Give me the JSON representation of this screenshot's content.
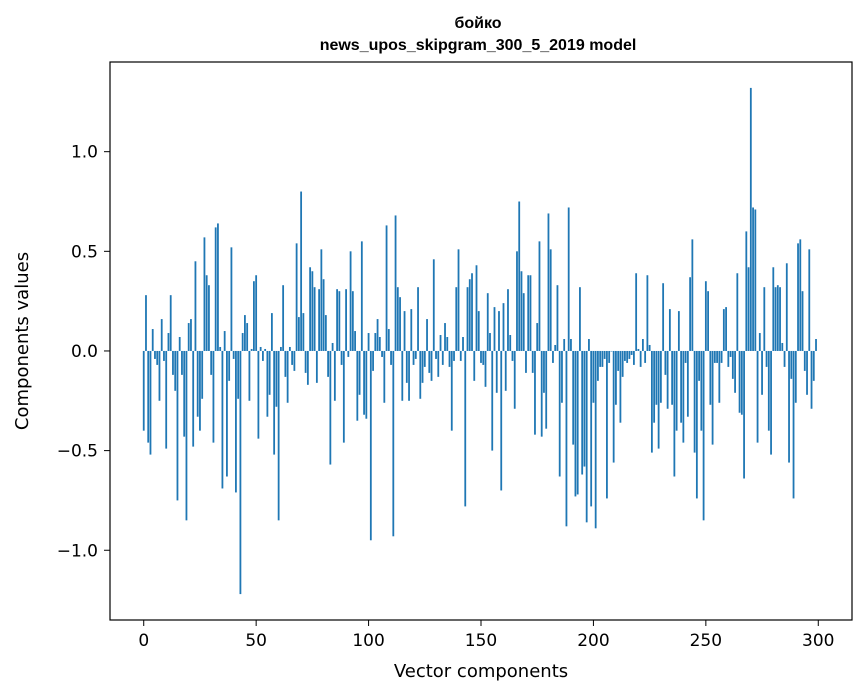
{
  "chart_data": {
    "type": "bar",
    "title_line1": "бойко",
    "title_line2": "news_upos_skipgram_300_5_2019 model",
    "xlabel": "Vector components",
    "ylabel": "Components values",
    "xlim": [
      -15,
      315
    ],
    "ylim": [
      -1.35,
      1.45
    ],
    "xticks": [
      0,
      50,
      100,
      150,
      200,
      250,
      300
    ],
    "xtick_labels": [
      "0",
      "50",
      "100",
      "150",
      "200",
      "250",
      "300"
    ],
    "yticks": [
      -1.0,
      -0.5,
      0.0,
      0.5,
      1.0
    ],
    "ytick_labels": [
      "−1.0",
      "−0.5",
      "0.0",
      "0.5",
      "1.0"
    ],
    "grid": false,
    "bar_color": "#1f77b4",
    "x_start": 0,
    "values": [
      -0.4,
      0.28,
      -0.46,
      -0.52,
      0.11,
      -0.04,
      -0.07,
      -0.25,
      0.16,
      -0.05,
      -0.49,
      0.09,
      0.28,
      -0.12,
      -0.2,
      -0.75,
      0.07,
      -0.12,
      -0.43,
      -0.85,
      0.14,
      0.16,
      -0.48,
      0.45,
      -0.33,
      -0.4,
      -0.24,
      0.57,
      0.38,
      0.33,
      -0.12,
      -0.46,
      0.62,
      0.64,
      0.02,
      -0.69,
      0.1,
      -0.63,
      -0.15,
      0.52,
      -0.04,
      -0.71,
      -0.24,
      -1.22,
      0.09,
      0.18,
      0.14,
      -0.25,
      0.01,
      0.35,
      0.38,
      -0.44,
      0.02,
      -0.05,
      0.01,
      -0.33,
      -0.22,
      0.19,
      -0.52,
      -0.28,
      -0.85,
      0.02,
      0.33,
      -0.13,
      -0.26,
      0.02,
      -0.07,
      -0.1,
      0.54,
      0.17,
      0.8,
      0.19,
      -0.11,
      -0.17,
      0.42,
      0.4,
      0.32,
      -0.16,
      0.31,
      0.51,
      0.36,
      0.18,
      -0.13,
      -0.57,
      0.04,
      -0.25,
      0.31,
      0.3,
      -0.07,
      -0.46,
      0.31,
      -0.03,
      0.5,
      0.3,
      0.1,
      -0.35,
      -0.22,
      0.55,
      -0.32,
      -0.34,
      0.09,
      -0.95,
      -0.1,
      0.09,
      0.16,
      0.07,
      -0.03,
      -0.26,
      0.63,
      0.11,
      -0.07,
      -0.93,
      0.68,
      0.32,
      0.27,
      -0.25,
      0.2,
      -0.16,
      -0.25,
      0.21,
      -0.07,
      -0.04,
      0.32,
      -0.24,
      -0.16,
      -0.08,
      0.16,
      -0.11,
      -0.15,
      0.46,
      -0.04,
      -0.13,
      0.08,
      -0.07,
      0.14,
      0.07,
      -0.08,
      -0.4,
      -0.05,
      0.32,
      0.51,
      -0.05,
      0.07,
      -0.78,
      0.32,
      0.36,
      0.39,
      -0.15,
      0.43,
      0.2,
      -0.06,
      -0.07,
      -0.18,
      0.29,
      0.09,
      -0.5,
      0.22,
      -0.21,
      0.2,
      -0.7,
      0.24,
      -0.2,
      0.31,
      0.08,
      -0.05,
      -0.29,
      0.5,
      0.75,
      0.4,
      0.29,
      -0.11,
      0.38,
      0.38,
      -0.11,
      -0.42,
      0.14,
      0.55,
      -0.43,
      -0.21,
      -0.39,
      0.69,
      0.51,
      -0.06,
      0.03,
      0.33,
      -0.63,
      -0.26,
      0.06,
      -0.88,
      0.72,
      0.06,
      -0.47,
      -0.73,
      -0.72,
      0.32,
      -0.62,
      -0.58,
      -0.86,
      0.06,
      -0.78,
      -0.26,
      -0.89,
      -0.15,
      -0.08,
      -0.08,
      -0.04,
      -0.74,
      -0.06,
      0.0,
      -0.56,
      -0.27,
      -0.1,
      -0.36,
      -0.13,
      -0.05,
      -0.06,
      -0.04,
      -0.02,
      -0.07,
      0.39,
      0.01,
      -0.08,
      0.06,
      -0.06,
      0.38,
      0.03,
      -0.51,
      -0.36,
      -0.27,
      -0.49,
      -0.26,
      0.34,
      -0.12,
      -0.29,
      0.21,
      -0.27,
      -0.63,
      -0.4,
      0.2,
      -0.36,
      -0.46,
      -0.06,
      -0.33,
      0.37,
      0.56,
      -0.51,
      -0.74,
      -0.15,
      -0.4,
      -0.85,
      0.35,
      0.3,
      -0.27,
      -0.47,
      -0.06,
      -0.06,
      -0.26,
      -0.06,
      0.21,
      0.22,
      -0.08,
      -0.03,
      -0.14,
      -0.21,
      0.39,
      -0.31,
      -0.32,
      -0.64,
      0.6,
      0.42,
      1.32,
      0.72,
      0.71,
      -0.46,
      0.09,
      -0.22,
      0.32,
      -0.08,
      -0.4,
      -0.52,
      0.42,
      0.32,
      0.33,
      0.32,
      0.04,
      -0.08,
      0.44,
      -0.56,
      -0.14,
      -0.74,
      -0.26,
      0.54,
      0.56,
      0.3,
      -0.1,
      -0.22,
      0.51,
      -0.29,
      -0.15,
      0.06
    ]
  }
}
